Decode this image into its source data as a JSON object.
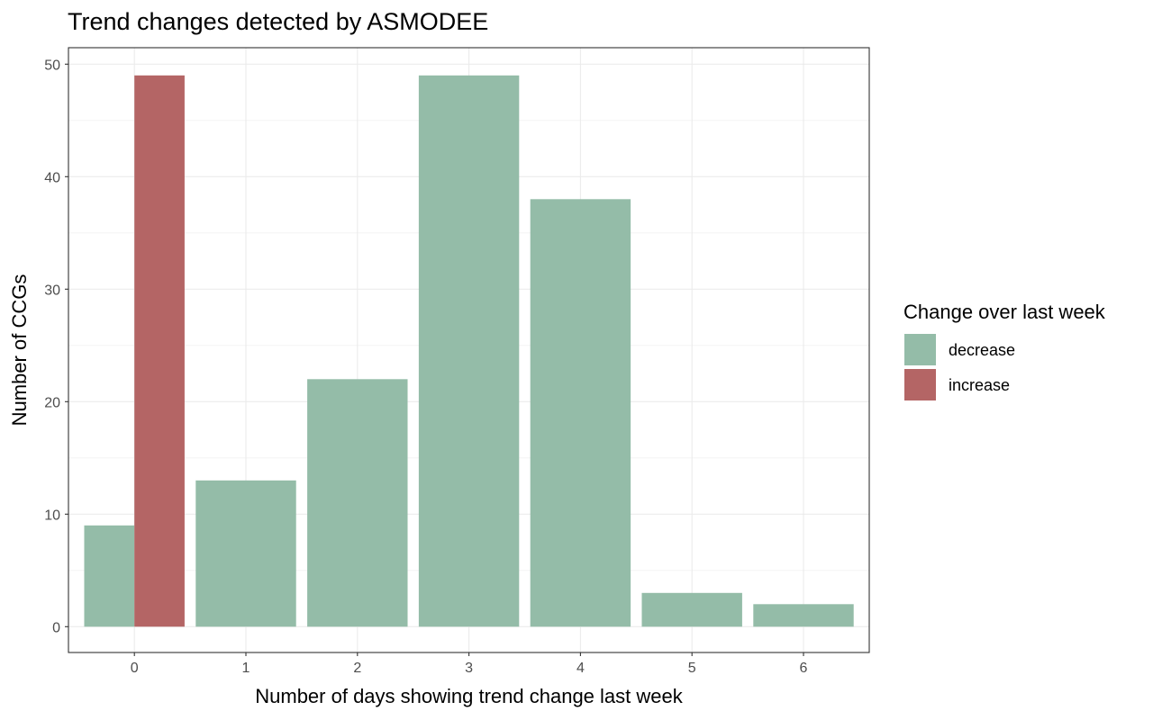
{
  "chart_data": {
    "type": "bar",
    "title": "Trend changes detected by ASMODEE",
    "xlabel": "Number of days showing trend change last week",
    "ylabel": "Number of CCGs",
    "categories": [
      "0",
      "1",
      "2",
      "3",
      "4",
      "5",
      "6"
    ],
    "series": [
      {
        "name": "decrease",
        "color": "#94bca8",
        "values": [
          9,
          13,
          22,
          49,
          38,
          3,
          2
        ]
      },
      {
        "name": "increase",
        "color": "#b46565",
        "values": [
          49,
          0,
          0,
          0,
          0,
          0,
          0
        ]
      }
    ],
    "ylim": [
      0,
      52
    ],
    "yticks": [
      0,
      10,
      20,
      30,
      40,
      50
    ],
    "grid": true,
    "legend": {
      "title": "Change over last week",
      "position": "right"
    }
  }
}
